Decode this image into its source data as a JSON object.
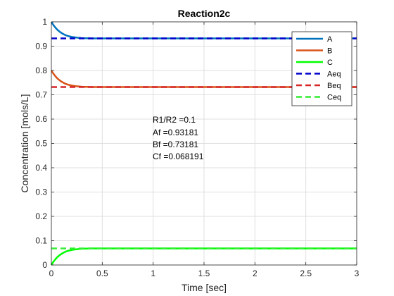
{
  "chart_data": {
    "type": "line",
    "title": "Reaction2c",
    "xlabel": "Time [sec]",
    "ylabel": "Concentration [mols/L]",
    "xlim": [
      0,
      3
    ],
    "ylim": [
      0,
      1
    ],
    "xticks": [
      0,
      0.5,
      1,
      1.5,
      2,
      2.5,
      3
    ],
    "xtick_labels": [
      "0",
      "0.5",
      "1",
      "1.5",
      "2",
      "2.5",
      "3"
    ],
    "yticks": [
      0,
      0.1,
      0.2,
      0.3,
      0.4,
      0.5,
      0.6,
      0.7,
      0.8,
      0.9,
      1
    ],
    "ytick_labels": [
      "0",
      "0.1",
      "0.2",
      "0.3",
      "0.4",
      "0.5",
      "0.6",
      "0.7",
      "0.8",
      "0.9",
      "1"
    ],
    "grid": true,
    "legend_position": "top-right",
    "annotations": [
      "R1/R2 =0.1",
      "Af =0.93181",
      "Bf =0.73181",
      "Cf =0.068191"
    ],
    "series": [
      {
        "name": "A",
        "style": "solid",
        "color": "#0072BD",
        "x": [
          0,
          0.02,
          0.04,
          0.06,
          0.08,
          0.1,
          0.13,
          0.16,
          0.2,
          0.25,
          0.3,
          0.4,
          0.5,
          1,
          2,
          3
        ],
        "y": [
          1.0,
          0.987,
          0.976,
          0.967,
          0.96,
          0.954,
          0.947,
          0.942,
          0.938,
          0.935,
          0.933,
          0.932,
          0.9318,
          0.93181,
          0.93181,
          0.93181
        ]
      },
      {
        "name": "B",
        "style": "solid",
        "color": "#D95319",
        "x": [
          0,
          0.02,
          0.04,
          0.06,
          0.08,
          0.1,
          0.13,
          0.16,
          0.2,
          0.25,
          0.3,
          0.4,
          0.5,
          1,
          2,
          3
        ],
        "y": [
          0.8,
          0.787,
          0.776,
          0.767,
          0.76,
          0.754,
          0.747,
          0.742,
          0.738,
          0.735,
          0.733,
          0.732,
          0.7318,
          0.73181,
          0.73181,
          0.73181
        ]
      },
      {
        "name": "C",
        "style": "solid",
        "color": "#00FF00",
        "x": [
          0,
          0.02,
          0.04,
          0.06,
          0.08,
          0.1,
          0.13,
          0.16,
          0.2,
          0.25,
          0.3,
          0.4,
          0.5,
          1,
          2,
          3
        ],
        "y": [
          0.0,
          0.013,
          0.024,
          0.033,
          0.04,
          0.046,
          0.053,
          0.058,
          0.062,
          0.065,
          0.067,
          0.068,
          0.0682,
          0.068191,
          0.068191,
          0.068191
        ]
      },
      {
        "name": "Aeq",
        "style": "dashed",
        "color": "#0000CC",
        "x": [
          0,
          3
        ],
        "y": [
          0.93181,
          0.93181
        ]
      },
      {
        "name": "Beq",
        "style": "dashed",
        "color": "#D62728",
        "x": [
          0,
          3
        ],
        "y": [
          0.73181,
          0.73181
        ]
      },
      {
        "name": "Ceq",
        "style": "dashed",
        "color": "#33EE33",
        "x": [
          0,
          3
        ],
        "y": [
          0.068191,
          0.068191
        ]
      }
    ]
  }
}
